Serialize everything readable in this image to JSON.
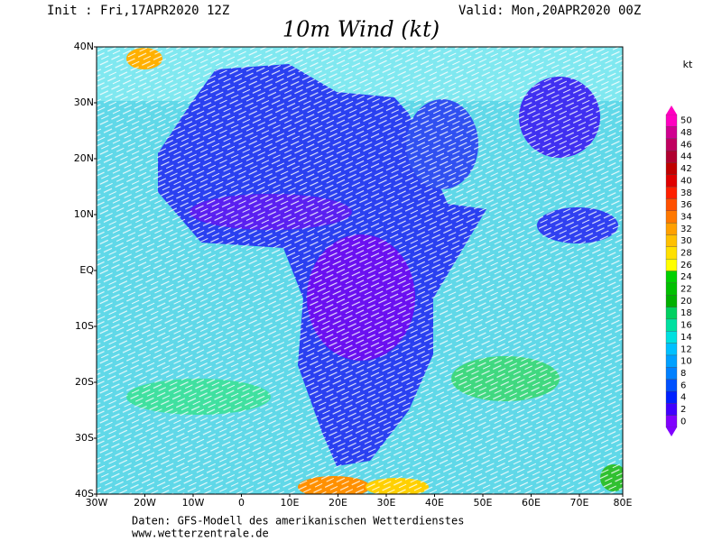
{
  "header": {
    "init": "Init : Fri,17APR2020 12Z",
    "valid": "Valid: Mon,20APR2020 00Z",
    "title": "10m Wind (kt)"
  },
  "map": {
    "lat_labels": [
      "40N",
      "30N",
      "20N",
      "10N",
      "EQ",
      "10S",
      "20S",
      "30S",
      "40S"
    ],
    "lon_labels": [
      "30W",
      "20W",
      "10W",
      "0",
      "10E",
      "20E",
      "30E",
      "40E",
      "50E",
      "60E",
      "70E",
      "80E"
    ]
  },
  "colorbar": {
    "unit": "kt",
    "levels": [
      0,
      2,
      4,
      6,
      8,
      10,
      12,
      14,
      16,
      18,
      20,
      22,
      24,
      26,
      28,
      30,
      32,
      34,
      36,
      38,
      40,
      42,
      44,
      46,
      48,
      50
    ],
    "colors": [
      "#8000ff",
      "#4000ff",
      "#0020ff",
      "#0050ff",
      "#0080ff",
      "#00a0ff",
      "#00c0ff",
      "#00e0e0",
      "#00e0a0",
      "#00d060",
      "#00b000",
      "#00c000",
      "#00d000",
      "#ffff00",
      "#ffe000",
      "#ffc000",
      "#ffa000",
      "#ff7800",
      "#ff5000",
      "#ff2000",
      "#e00000",
      "#c00000",
      "#b00030",
      "#c00060",
      "#d00090",
      "#ff00c0"
    ]
  },
  "footer": {
    "source": "Daten: GFS-Modell des amerikanischen Wetterdienstes",
    "url": "www.wetterzentrale.de"
  }
}
